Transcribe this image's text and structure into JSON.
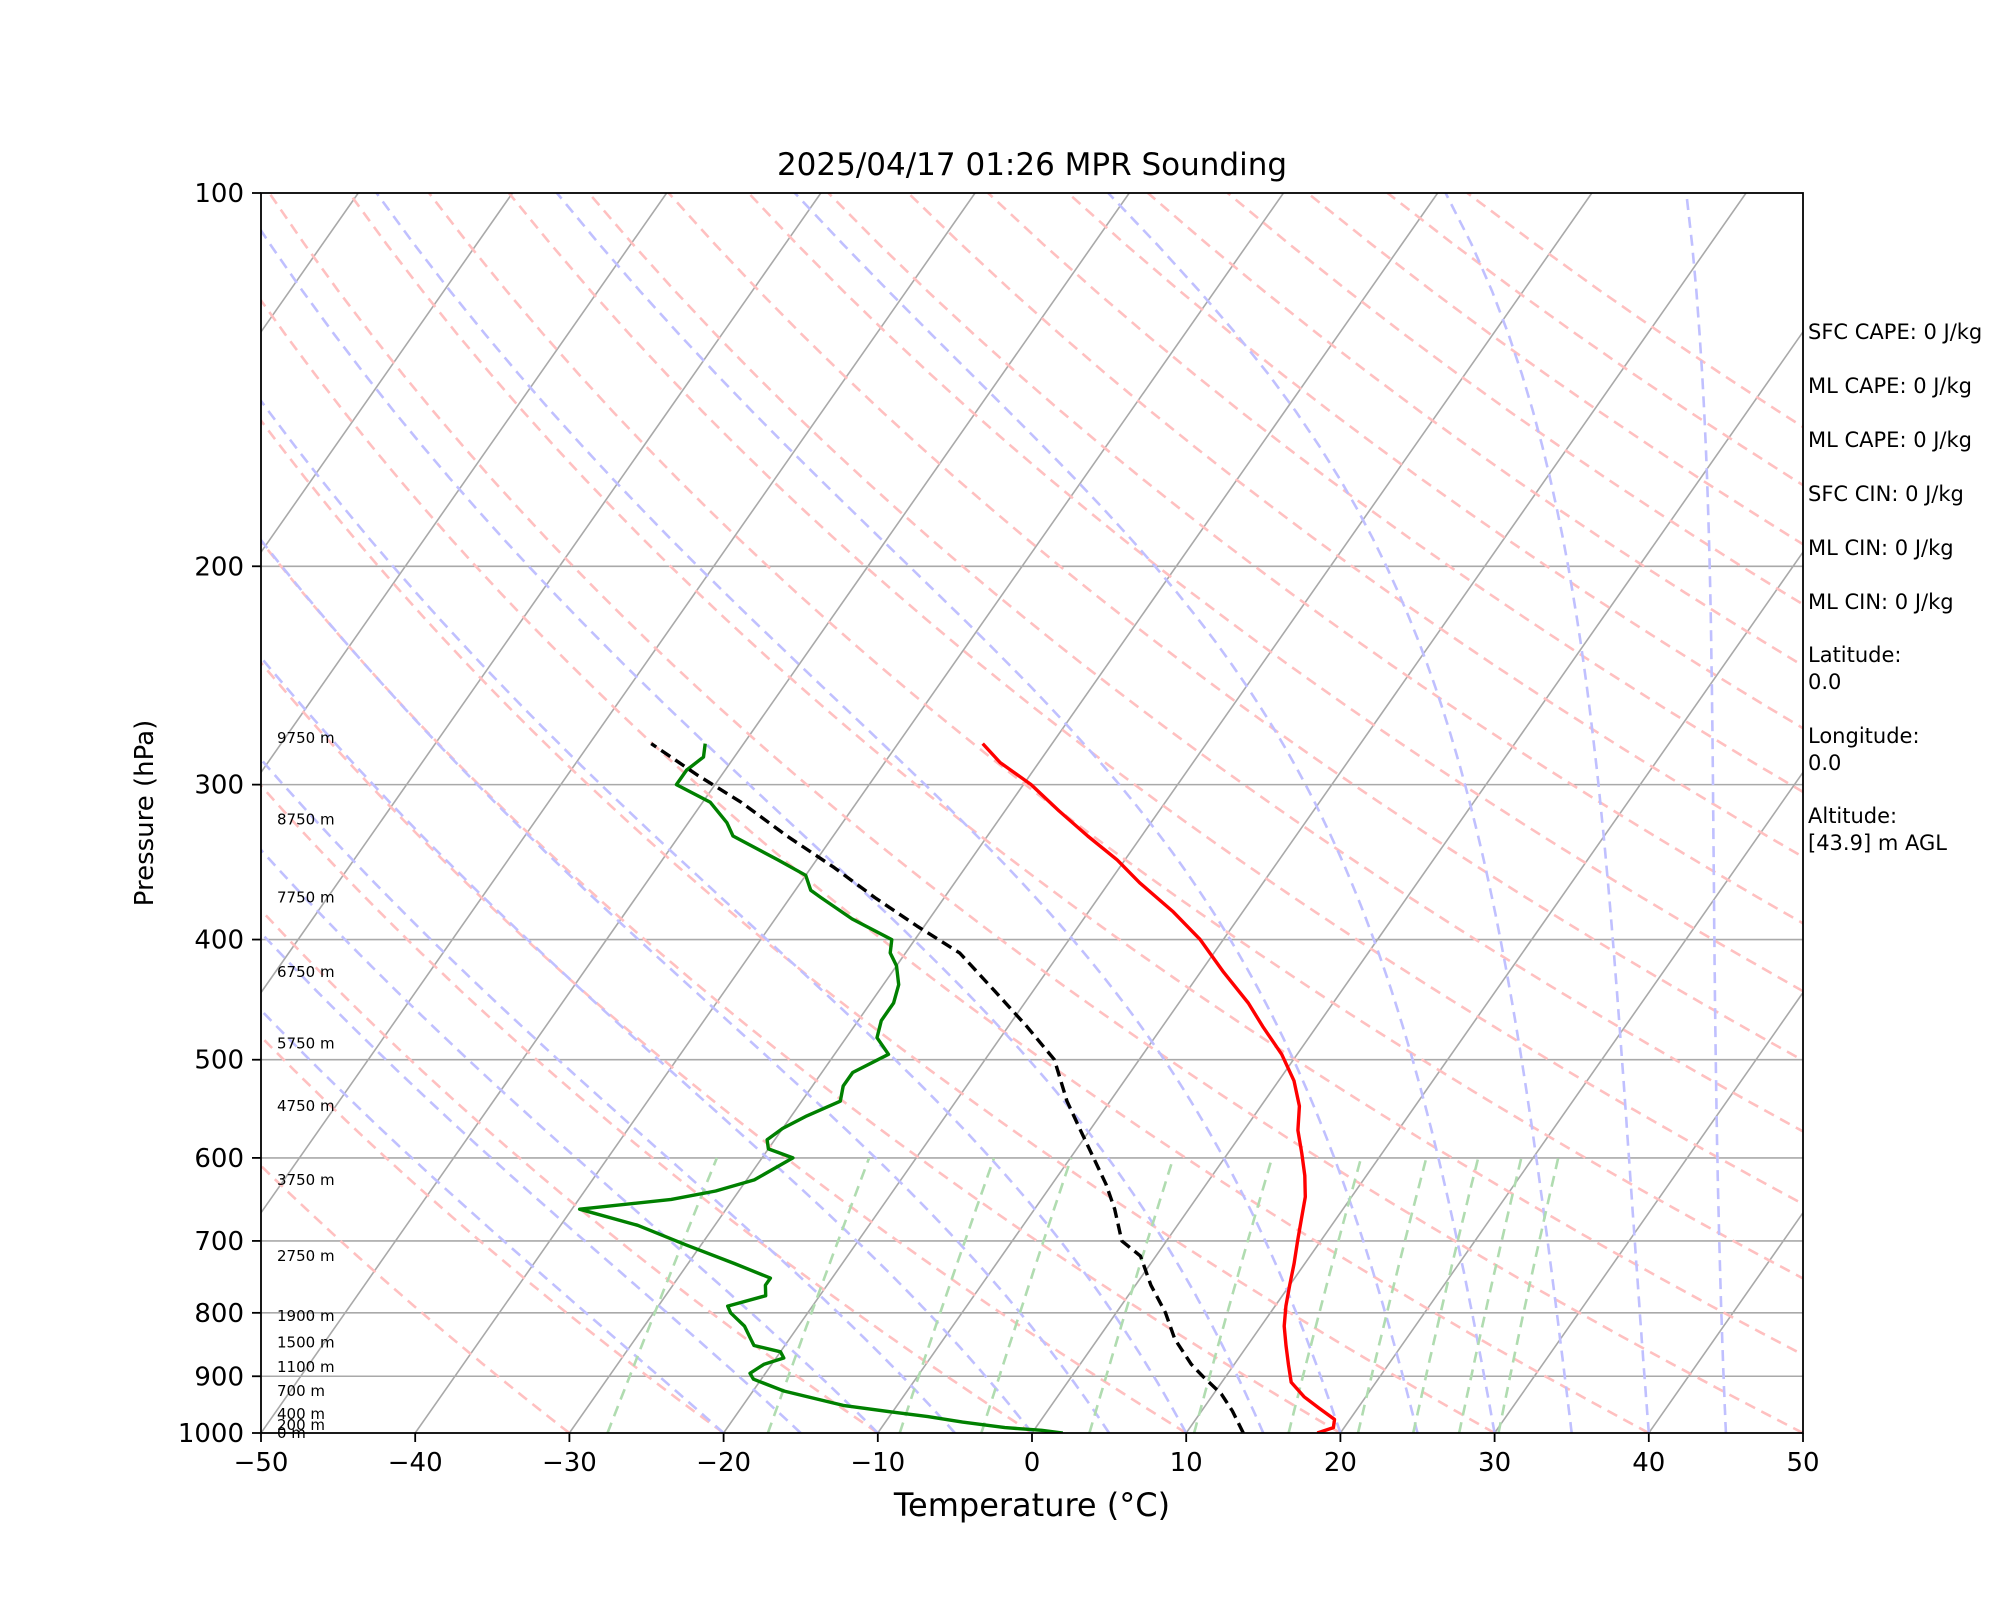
{
  "chart_data": {
    "type": "line",
    "title": "2025/04/17 01:26 MPR Sounding",
    "xlabel": "Temperature (°C)",
    "ylabel": "Pressure (hPa)",
    "xlim": [
      -50,
      50
    ],
    "ylim": [
      1000,
      100
    ],
    "y_scale": "log",
    "skew": "skew-T",
    "grid": true,
    "x_ticks": [
      -50,
      -40,
      -30,
      -20,
      -10,
      0,
      10,
      20,
      30,
      40,
      50
    ],
    "x_tick_labels": [
      "−50",
      "−40",
      "−30",
      "−20",
      "−10",
      "0",
      "10",
      "20",
      "30",
      "40",
      "50"
    ],
    "y_ticks": [
      1000,
      900,
      800,
      700,
      600,
      500,
      400,
      300,
      200,
      100
    ],
    "height_labels": [
      {
        "p": 1000,
        "text": "0 m"
      },
      {
        "p": 985,
        "text": "200 m"
      },
      {
        "p": 965,
        "text": "400 m"
      },
      {
        "p": 925,
        "text": "700 m"
      },
      {
        "p": 885,
        "text": "1100 m"
      },
      {
        "p": 845,
        "text": "1500 m"
      },
      {
        "p": 805,
        "text": "1900 m"
      },
      {
        "p": 720,
        "text": "2750 m"
      },
      {
        "p": 625,
        "text": "3750 m"
      },
      {
        "p": 545,
        "text": "4750 m"
      },
      {
        "p": 485,
        "text": "5750 m"
      },
      {
        "p": 425,
        "text": "6750 m"
      },
      {
        "p": 370,
        "text": "7750 m"
      },
      {
        "p": 320,
        "text": "8750 m"
      },
      {
        "p": 275,
        "text": "9750 m"
      }
    ],
    "series": [
      {
        "key": "temperature",
        "color": "#ff0000",
        "points": [
          [
            18.5,
            1000
          ],
          [
            19.3,
            990
          ],
          [
            19.0,
            975
          ],
          [
            17.5,
            955
          ],
          [
            16.0,
            935
          ],
          [
            14.5,
            910
          ],
          [
            13.5,
            880
          ],
          [
            12.5,
            850
          ],
          [
            11.5,
            820
          ],
          [
            10.7,
            790
          ],
          [
            10.0,
            760
          ],
          [
            9.3,
            730
          ],
          [
            8.5,
            700
          ],
          [
            7.7,
            670
          ],
          [
            7.0,
            645
          ],
          [
            6.0,
            620
          ],
          [
            4.8,
            595
          ],
          [
            3.5,
            570
          ],
          [
            2.5,
            545
          ],
          [
            1.0,
            520
          ],
          [
            -1.0,
            495
          ],
          [
            -3.5,
            470
          ],
          [
            -5.5,
            450
          ],
          [
            -8.5,
            425
          ],
          [
            -11.5,
            400
          ],
          [
            -14.5,
            380
          ],
          [
            -18.0,
            360
          ],
          [
            -20.5,
            345
          ],
          [
            -23.5,
            330
          ],
          [
            -26.5,
            315
          ],
          [
            -29.5,
            300
          ],
          [
            -32.5,
            288
          ],
          [
            -34.5,
            278
          ]
        ]
      },
      {
        "key": "dewpoint",
        "color": "#008000",
        "points": [
          [
            2.0,
            1000
          ],
          [
            0.5,
            995
          ],
          [
            -2.0,
            990
          ],
          [
            -5.0,
            980
          ],
          [
            -7.5,
            970
          ],
          [
            -10.0,
            962
          ],
          [
            -13.5,
            950
          ],
          [
            -18.0,
            925
          ],
          [
            -20.5,
            905
          ],
          [
            -21.0,
            895
          ],
          [
            -20.5,
            880
          ],
          [
            -19.5,
            870
          ],
          [
            -20.0,
            860
          ],
          [
            -22.0,
            850
          ],
          [
            -22.5,
            840
          ],
          [
            -23.5,
            820
          ],
          [
            -25.0,
            800
          ],
          [
            -25.5,
            790
          ],
          [
            -23.5,
            775
          ],
          [
            -24.0,
            760
          ],
          [
            -24.0,
            750
          ],
          [
            -27.0,
            730
          ],
          [
            -31.0,
            705
          ],
          [
            -35.0,
            680
          ],
          [
            -39.5,
            660
          ],
          [
            -34.0,
            648
          ],
          [
            -31.5,
            638
          ],
          [
            -29.5,
            625
          ],
          [
            -28.0,
            600
          ],
          [
            -30.0,
            590
          ],
          [
            -30.5,
            580
          ],
          [
            -30.0,
            568
          ],
          [
            -29.0,
            555
          ],
          [
            -27.5,
            540
          ],
          [
            -28.0,
            525
          ],
          [
            -28.0,
            512
          ],
          [
            -26.5,
            495
          ],
          [
            -28.0,
            480
          ],
          [
            -28.5,
            465
          ],
          [
            -28.5,
            450
          ],
          [
            -29.0,
            435
          ],
          [
            -30.0,
            420
          ],
          [
            -31.0,
            410
          ],
          [
            -31.5,
            400
          ],
          [
            -35.0,
            385
          ],
          [
            -38.0,
            370
          ],
          [
            -39.0,
            365
          ],
          [
            -40.0,
            355
          ],
          [
            -42.5,
            345
          ],
          [
            -46.5,
            330
          ],
          [
            -47.5,
            322
          ],
          [
            -49.5,
            310
          ],
          [
            -52.5,
            300
          ],
          [
            -52.5,
            292
          ],
          [
            -52.0,
            285
          ],
          [
            -52.5,
            278
          ]
        ]
      },
      {
        "key": "parcel",
        "color": "#000000",
        "points": [
          [
            13.7,
            1000
          ],
          [
            12.0,
            960
          ],
          [
            10.5,
            930
          ],
          [
            8.5,
            900
          ],
          [
            7.2,
            880
          ],
          [
            5.0,
            840
          ],
          [
            3.2,
            800
          ],
          [
            1.0,
            760
          ],
          [
            -1.0,
            720
          ],
          [
            -2.9,
            700
          ],
          [
            -4.8,
            660
          ],
          [
            -6.5,
            630
          ],
          [
            -8.5,
            600
          ],
          [
            -10.6,
            570
          ],
          [
            -12.8,
            540
          ],
          [
            -15.5,
            500
          ],
          [
            -18.8,
            470
          ],
          [
            -22.5,
            440
          ],
          [
            -26.5,
            410
          ],
          [
            -30.5,
            390
          ],
          [
            -34.5,
            370
          ],
          [
            -38.5,
            350
          ],
          [
            -43.0,
            330
          ],
          [
            -47.5,
            310
          ],
          [
            -51.5,
            295
          ],
          [
            -56.0,
            278
          ]
        ]
      }
    ],
    "reference_lines": {
      "isotherm_color": "#a9a9a9",
      "dry_adiabat_color": "#ffc0c0",
      "moist_adiabat_color": "#c0c0ff",
      "mixing_ratio_color": "#b0dcb0"
    },
    "annotations": [
      "SFC CAPE: 0 J/kg",
      "ML CAPE: 0 J/kg",
      "ML CAPE: 0 J/kg",
      "SFC CIN: 0 J/kg",
      "ML CIN: 0 J/kg",
      "ML CIN: 0 J/kg",
      "Latitude:\n0.0",
      "Longitude:\n0.0",
      "Altitude:\n[43.9] m AGL"
    ]
  }
}
